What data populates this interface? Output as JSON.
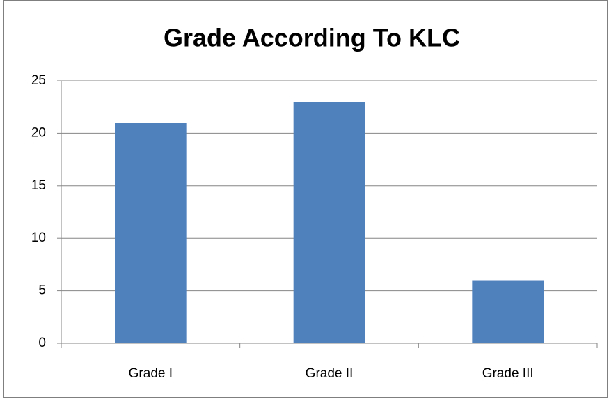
{
  "chart_data": {
    "type": "bar",
    "title": "Grade According To KLC",
    "categories": [
      "Grade I",
      "Grade II",
      "Grade III"
    ],
    "values": [
      21,
      23,
      6
    ],
    "color": "#4f81bd",
    "ylim": [
      0,
      25
    ],
    "yticks": [
      0,
      5,
      10,
      15,
      20,
      25
    ],
    "grid": true
  }
}
